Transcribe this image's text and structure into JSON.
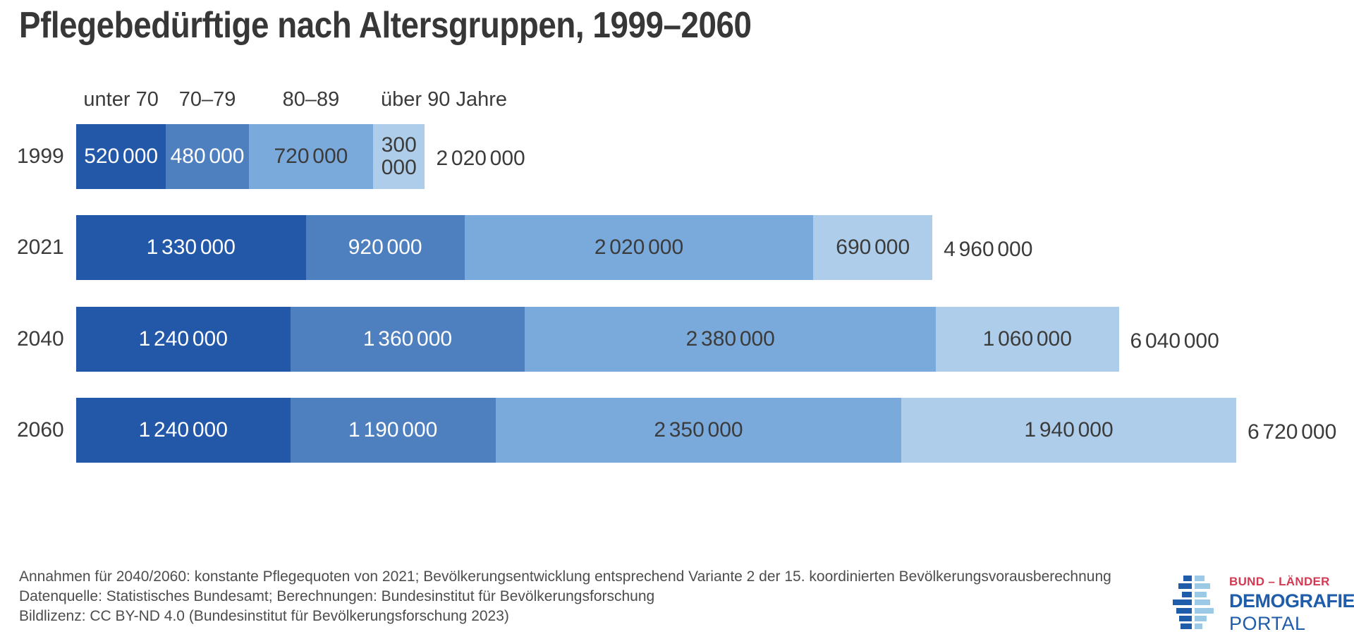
{
  "title": "Pflegebedürftige nach Altersgruppen, 1999–2060",
  "text_color": "#3b3b3b",
  "chart_data": {
    "type": "bar",
    "orientation": "horizontal-stacked",
    "categories": [
      "1999",
      "2021",
      "2040",
      "2060"
    ],
    "series": [
      {
        "name": "unter 70",
        "color": "#2357a8",
        "label_color": "#ffffff",
        "values": [
          520000,
          1330000,
          1240000,
          1240000
        ],
        "labels": [
          "520 000",
          "1 330 000",
          "1 240 000",
          "1 240 000"
        ]
      },
      {
        "name": "70–79",
        "color": "#4e7fbf",
        "label_color": "#ffffff",
        "values": [
          480000,
          920000,
          1360000,
          1190000
        ],
        "labels": [
          "480 000",
          "920 000",
          "1 360 000",
          "1 190 000"
        ]
      },
      {
        "name": "80–89",
        "color": "#7aaadb",
        "label_color": "#3b3b3b",
        "values": [
          720000,
          2020000,
          2380000,
          2350000
        ],
        "labels": [
          "720 000",
          "2 020 000",
          "2 380 000",
          "2 350 000"
        ]
      },
      {
        "name": "über 90 Jahre",
        "color": "#aecdea",
        "label_color": "#3b3b3b",
        "values": [
          300000,
          690000,
          1060000,
          1940000
        ],
        "labels": [
          "300 000",
          "690 000",
          "1 060 000",
          "1 940 000"
        ]
      }
    ],
    "totals": [
      2020000,
      4960000,
      6040000,
      6720000
    ],
    "total_labels": [
      "2 020 000",
      "4 960 000",
      "6 040 000",
      "6 720 000"
    ],
    "xlim": [
      0,
      6720000
    ],
    "legend_position": "top",
    "grid": false
  },
  "footnotes": [
    "Annahmen für 2040/2060: konstante Pflegequoten von 2021; Bevölkerungsentwicklung entsprechend Variante 2 der 15. koordinierten Bevölkerungsvorausberechnung",
    "Datenquelle: Statistisches Bundesamt; Berechnungen: Bundesinstitut für Bevölkerungsforschung",
    "Bildlizenz: CC BY-ND 4.0 (Bundesinstitut für Bevölkerungsforschung 2023)"
  ],
  "logo": {
    "top_line": "BUND – LÄNDER",
    "main_line": "DEMOGRAFIE",
    "sub_line": "PORTAL",
    "red": "#d13a52",
    "blue": "#1f5ca9",
    "light_blue": "#9ccae6"
  }
}
